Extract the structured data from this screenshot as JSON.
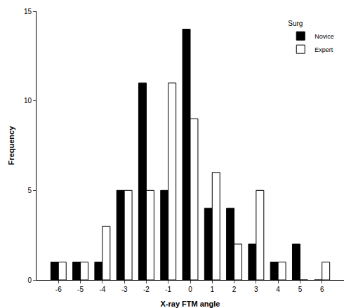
{
  "chart_data": {
    "type": "bar",
    "x_label": "X-ray FTM angle",
    "y_label": "Frequency",
    "legend_title": "Surg",
    "x": [
      -6,
      -5,
      -4,
      -3,
      -2,
      -1,
      0,
      1,
      2,
      3,
      4,
      5,
      6
    ],
    "series": [
      {
        "name": "Novice",
        "color": "#000000",
        "values": [
          1,
          1,
          1,
          5,
          11,
          5,
          14,
          4,
          4,
          2,
          1,
          2,
          0
        ]
      },
      {
        "name": "Expert",
        "color": "#ffffff",
        "values": [
          1,
          1,
          3,
          5,
          5,
          11,
          9,
          6,
          2,
          5,
          1,
          0,
          1
        ]
      }
    ],
    "xlim": [
      -7,
      7
    ],
    "xticks": [
      -6,
      -5,
      -4,
      -3,
      -2,
      -1,
      0,
      1,
      2,
      3,
      4,
      5,
      6
    ],
    "ylim": [
      0,
      15
    ],
    "yticks": [
      0,
      5,
      10,
      15
    ],
    "grid": false,
    "legend": "upper right"
  }
}
